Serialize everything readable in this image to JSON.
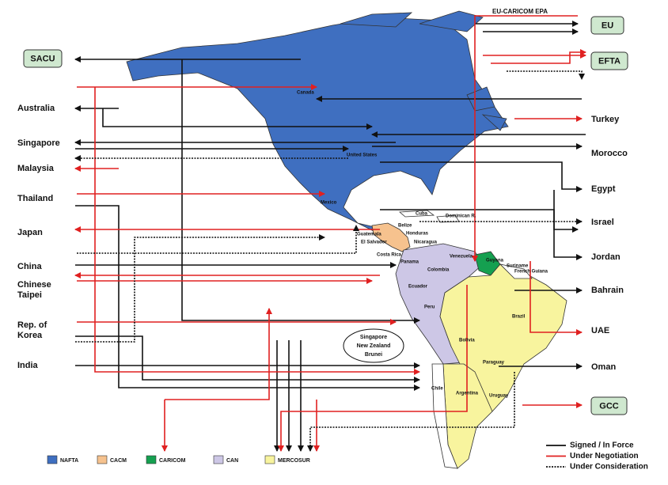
{
  "annotation": "EU-CARICOM EPA",
  "left_boxes": [
    "SACU"
  ],
  "left_partners": [
    [
      "Australia"
    ],
    [
      "Singapore"
    ],
    [
      "Malaysia"
    ],
    [
      "Thailand"
    ],
    [
      "Japan"
    ],
    [
      "China"
    ],
    [
      "Chinese",
      "Taipei"
    ],
    [
      "Rep. of",
      "Korea"
    ],
    [
      "India"
    ]
  ],
  "right_boxes": [
    "EU",
    "EFTA",
    "GCC"
  ],
  "right_partners": [
    "Turkey",
    "Morocco",
    "Egypt",
    "Israel",
    "Jordan",
    "Bahrain",
    "UAE",
    "Oman"
  ],
  "map_labels": [
    "Canada",
    "United States",
    "Mexico",
    "Cuba",
    "Dominican R.",
    "Belize",
    "Honduras",
    "Guatemala",
    "El Salvador",
    "Nicaragua",
    "Costa Rica",
    "Panama",
    "Venezuela",
    "Guyana",
    "Suriname",
    "French Guiana",
    "Colombia",
    "Ecuador",
    "Peru",
    "Brazil",
    "Bolivia",
    "Paraguay",
    "Chile",
    "Argentina",
    "Uruguay"
  ],
  "bubble": [
    "Singapore",
    "New Zealand",
    "Brunei"
  ],
  "legend": {
    "blocs": [
      {
        "name": "NAFTA",
        "color": "#3f6fc0"
      },
      {
        "name": "CACM",
        "color": "#f6c28e"
      },
      {
        "name": "CARICOM",
        "color": "#15a050"
      },
      {
        "name": "CAN",
        "color": "#cdc7e6"
      },
      {
        "name": "MERCOSUR",
        "color": "#f8f49e"
      }
    ],
    "lines": [
      "Signed / In Force",
      "Under Negotiation",
      "Under Consideration"
    ]
  }
}
